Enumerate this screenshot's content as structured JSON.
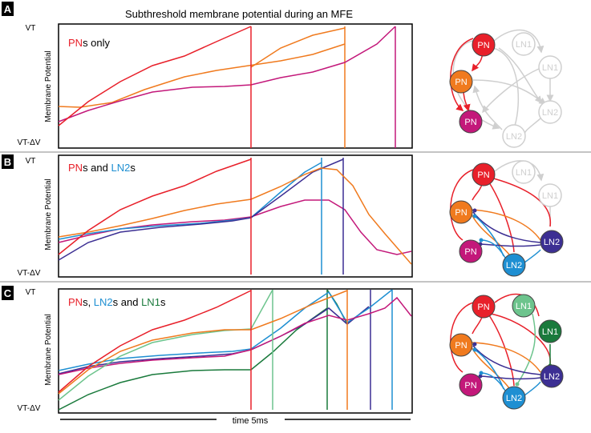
{
  "title": "Subthreshold membrane potential during an MFE",
  "colors": {
    "PN1": "#e8202a",
    "PN2": "#f07a1e",
    "PN3": "#c3187a",
    "LN2a": "#1e8fd2",
    "LN2b": "#3c2f93",
    "LN1a": "#6dc48d",
    "LN1b": "#1a7a3c",
    "gray": "#cfcfcf",
    "node_label": "#ffffff"
  },
  "panels": [
    {
      "letter": "A",
      "legend": [
        {
          "text": "PN",
          "color": "PN1"
        },
        {
          "text": "s only",
          "color": "black"
        }
      ],
      "ylabel": "Membrane Potential",
      "vt": "VT",
      "vt_dv": "VT-ΔV"
    },
    {
      "letter": "B",
      "legend": [
        {
          "text": "PN",
          "color": "PN1"
        },
        {
          "text": "s and ",
          "color": "black"
        },
        {
          "text": "LN2",
          "color": "LN2a"
        },
        {
          "text": "s",
          "color": "black"
        }
      ],
      "ylabel": "Membrane Potential",
      "vt": "VT",
      "vt_dv": "VT-ΔV"
    },
    {
      "letter": "C",
      "legend": [
        {
          "text": "PN",
          "color": "PN1"
        },
        {
          "text": "s, ",
          "color": "black"
        },
        {
          "text": "LN2",
          "color": "LN2a"
        },
        {
          "text": "s and ",
          "color": "black"
        },
        {
          "text": "LN1",
          "color": "LN1b"
        },
        {
          "text": "s",
          "color": "black"
        }
      ],
      "ylabel": "Membrane Potential",
      "vt": "VT",
      "vt_dv": "VT-ΔV"
    }
  ],
  "time_label": "time 5ms",
  "nodes": {
    "pn": "PN",
    "ln1": "LN1",
    "ln2": "LN2"
  }
}
